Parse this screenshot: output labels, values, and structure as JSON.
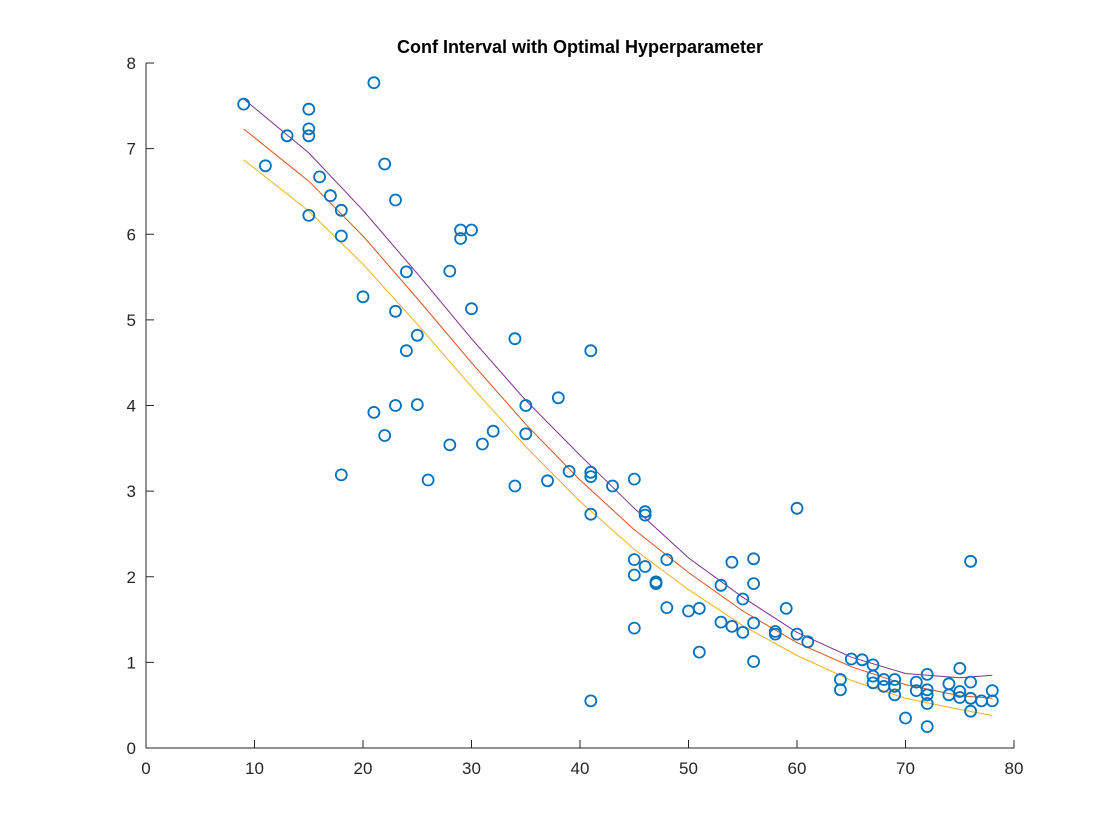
{
  "chart_data": {
    "type": "scatter",
    "title": "Conf Interval with Optimal Hyperparameter",
    "xlabel": "",
    "ylabel": "",
    "xlim": [
      0,
      80
    ],
    "ylim": [
      0,
      8
    ],
    "xticks": [
      0,
      10,
      20,
      30,
      40,
      50,
      60,
      70,
      80
    ],
    "yticks": [
      0,
      1,
      2,
      3,
      4,
      5,
      6,
      7,
      8
    ],
    "grid": false,
    "legend": "none",
    "colors": {
      "points": "#0072BD",
      "upper": "#7E2F8E",
      "mean": "#D95319",
      "lower": "#EDB120"
    },
    "series": [
      {
        "type": "scatter",
        "marker": "circle",
        "color": "#0072BD",
        "points": [
          [
            9,
            7.52
          ],
          [
            11,
            6.8
          ],
          [
            13,
            7.15
          ],
          [
            15,
            7.46
          ],
          [
            15,
            7.23
          ],
          [
            15,
            7.15
          ],
          [
            15,
            6.22
          ],
          [
            16,
            6.67
          ],
          [
            17,
            6.45
          ],
          [
            18,
            6.28
          ],
          [
            18,
            5.98
          ],
          [
            18,
            3.19
          ],
          [
            20,
            5.27
          ],
          [
            21,
            7.77
          ],
          [
            21,
            3.92
          ],
          [
            22,
            6.82
          ],
          [
            22,
            3.65
          ],
          [
            23,
            6.4
          ],
          [
            23,
            5.1
          ],
          [
            23,
            4.0
          ],
          [
            24,
            5.56
          ],
          [
            24,
            4.64
          ],
          [
            25,
            4.82
          ],
          [
            25,
            4.01
          ],
          [
            26,
            3.13
          ],
          [
            28,
            5.57
          ],
          [
            28,
            3.54
          ],
          [
            29,
            6.05
          ],
          [
            29,
            5.95
          ],
          [
            30,
            6.05
          ],
          [
            30,
            5.13
          ],
          [
            31,
            3.55
          ],
          [
            32,
            3.7
          ],
          [
            34,
            4.78
          ],
          [
            34,
            3.06
          ],
          [
            35,
            4.0
          ],
          [
            35,
            3.67
          ],
          [
            37,
            3.12
          ],
          [
            38,
            4.09
          ],
          [
            39,
            3.23
          ],
          [
            41,
            4.64
          ],
          [
            41,
            3.22
          ],
          [
            41,
            3.17
          ],
          [
            41,
            2.73
          ],
          [
            41,
            0.55
          ],
          [
            43,
            3.06
          ],
          [
            45,
            3.14
          ],
          [
            45,
            2.2
          ],
          [
            45,
            2.02
          ],
          [
            45,
            1.4
          ],
          [
            46,
            2.76
          ],
          [
            46,
            2.72
          ],
          [
            46,
            2.12
          ],
          [
            47,
            1.94
          ],
          [
            47,
            1.92
          ],
          [
            48,
            2.2
          ],
          [
            48,
            1.64
          ],
          [
            50,
            1.6
          ],
          [
            51,
            1.63
          ],
          [
            51,
            1.12
          ],
          [
            53,
            1.9
          ],
          [
            53,
            1.47
          ],
          [
            54,
            2.17
          ],
          [
            54,
            1.42
          ],
          [
            55,
            1.74
          ],
          [
            55,
            1.35
          ],
          [
            56,
            2.21
          ],
          [
            56,
            1.92
          ],
          [
            56,
            1.46
          ],
          [
            56,
            1.01
          ],
          [
            58,
            1.36
          ],
          [
            58,
            1.33
          ],
          [
            59,
            1.63
          ],
          [
            60,
            2.8
          ],
          [
            60,
            1.33
          ],
          [
            61,
            1.24
          ],
          [
            64,
            0.8
          ],
          [
            64,
            0.68
          ],
          [
            65,
            1.04
          ],
          [
            66,
            1.03
          ],
          [
            67,
            0.97
          ],
          [
            67,
            0.84
          ],
          [
            67,
            0.76
          ],
          [
            68,
            0.8
          ],
          [
            68,
            0.72
          ],
          [
            69,
            0.8
          ],
          [
            69,
            0.72
          ],
          [
            69,
            0.62
          ],
          [
            70,
            0.35
          ],
          [
            71,
            0.77
          ],
          [
            71,
            0.67
          ],
          [
            72,
            0.86
          ],
          [
            72,
            0.68
          ],
          [
            72,
            0.62
          ],
          [
            72,
            0.52
          ],
          [
            72,
            0.25
          ],
          [
            74,
            0.75
          ],
          [
            74,
            0.62
          ],
          [
            75,
            0.93
          ],
          [
            75,
            0.66
          ],
          [
            75,
            0.59
          ],
          [
            76,
            2.18
          ],
          [
            76,
            0.77
          ],
          [
            76,
            0.58
          ],
          [
            76,
            0.43
          ],
          [
            77,
            0.55
          ],
          [
            78,
            0.67
          ],
          [
            78,
            0.55
          ]
        ]
      },
      {
        "type": "line",
        "color": "#7E2F8E",
        "x": [
          9,
          15,
          20,
          25,
          30,
          35,
          40,
          45,
          50,
          55,
          60,
          65,
          70,
          75,
          78
        ],
        "y": [
          7.58,
          6.95,
          6.28,
          5.54,
          4.78,
          4.06,
          3.42,
          2.8,
          2.22,
          1.76,
          1.35,
          1.06,
          0.87,
          0.82,
          0.85
        ]
      },
      {
        "type": "line",
        "color": "#D95319",
        "x": [
          9,
          15,
          20,
          25,
          30,
          35,
          40,
          45,
          50,
          55,
          60,
          65,
          70,
          75,
          78
        ],
        "y": [
          7.23,
          6.62,
          5.98,
          5.25,
          4.5,
          3.78,
          3.13,
          2.55,
          2.05,
          1.6,
          1.23,
          0.95,
          0.74,
          0.61,
          0.58
        ]
      },
      {
        "type": "line",
        "color": "#EDB120",
        "x": [
          9,
          15,
          20,
          25,
          30,
          35,
          40,
          45,
          50,
          55,
          60,
          65,
          70,
          75,
          78
        ],
        "y": [
          6.87,
          6.27,
          5.65,
          4.95,
          4.22,
          3.52,
          2.88,
          2.32,
          1.85,
          1.43,
          1.08,
          0.79,
          0.58,
          0.45,
          0.38
        ]
      }
    ]
  }
}
